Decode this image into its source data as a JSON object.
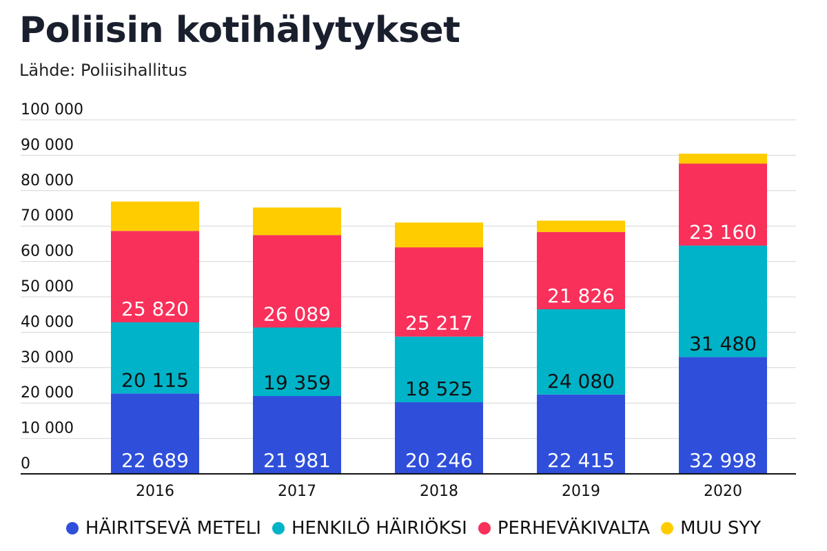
{
  "title": "Poliisin kotihälytykset",
  "subtitle": "Lähde: Poliisihallitus",
  "chart_data": {
    "type": "bar",
    "stacked": true,
    "categories": [
      "2016",
      "2017",
      "2018",
      "2019",
      "2020"
    ],
    "ylim": [
      0,
      100000
    ],
    "yticks": [
      {
        "value": 0,
        "label": "0"
      },
      {
        "value": 10000,
        "label": "10 000"
      },
      {
        "value": 20000,
        "label": "20 000"
      },
      {
        "value": 30000,
        "label": "30 000"
      },
      {
        "value": 40000,
        "label": "40 000"
      },
      {
        "value": 50000,
        "label": "50 000"
      },
      {
        "value": 60000,
        "label": "60 000"
      },
      {
        "value": 70000,
        "label": "70 000"
      },
      {
        "value": 80000,
        "label": "80 000"
      },
      {
        "value": 90000,
        "label": "90 000"
      },
      {
        "value": 100000,
        "label": "100 000"
      }
    ],
    "grid": true,
    "legend_position": "bottom",
    "series": [
      {
        "name": "HÄIRITSEVÄ METELI",
        "color": "#2f4fdb",
        "label_color": "#ffffff",
        "values": [
          22689,
          21981,
          20246,
          22415,
          32998
        ],
        "labels": [
          "22 689",
          "21 981",
          "20 246",
          "22 415",
          "32 998"
        ]
      },
      {
        "name": "HENKILÖ HÄIRIÖKSI",
        "color": "#00b3c8",
        "label_color": "#111111",
        "values": [
          20115,
          19359,
          18525,
          24080,
          31480
        ],
        "labels": [
          "20 115",
          "19 359",
          "18 525",
          "24 080",
          "31 480"
        ]
      },
      {
        "name": "PERHEVÄKIVALTA",
        "color": "#f8305a",
        "label_color": "#ffffff",
        "values": [
          25820,
          26089,
          25217,
          21826,
          23160
        ],
        "labels": [
          "25 820",
          "26 089",
          "25 217",
          "21 826",
          "23 160"
        ]
      },
      {
        "name": "MUU SYY",
        "color": "#ffcc00",
        "label_color": "#111111",
        "values": [
          8300,
          7800,
          7000,
          3200,
          2800
        ],
        "labels": []
      }
    ]
  }
}
